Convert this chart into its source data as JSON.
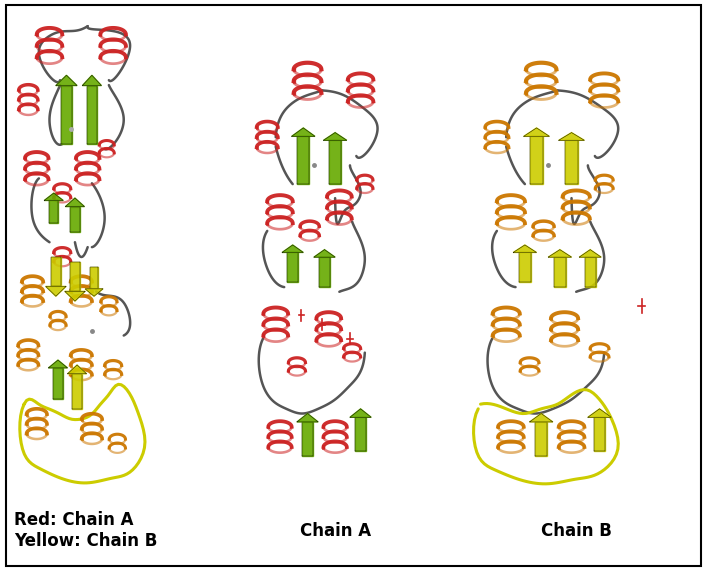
{
  "label_left_line1": "Red: Chain A",
  "label_left_line2": "Yellow: Chain B",
  "label_center": "Chain A",
  "label_right": "Chain B",
  "background_color": "#ffffff",
  "border_color": "#000000",
  "text_color": "#000000",
  "label_fontsize": 12,
  "label_fontweight": "bold",
  "fig_width": 7.07,
  "fig_height": 5.71,
  "dpi": 100
}
